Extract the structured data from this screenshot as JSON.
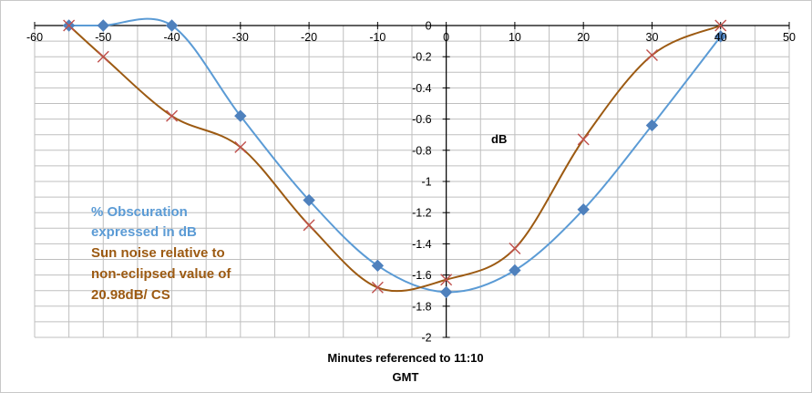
{
  "chart_data": {
    "type": "scatter",
    "xlabel_line1": "Minutes  referenced to 11:10",
    "xlabel_line2": "GMT",
    "ylabel": "dB",
    "xlim": [
      -60,
      50
    ],
    "ylim": [
      -2,
      0
    ],
    "x_ticks": [
      -60,
      -50,
      -40,
      -30,
      -20,
      -10,
      0,
      10,
      20,
      30,
      40,
      50
    ],
    "y_ticks": [
      0,
      -0.2,
      -0.4,
      -0.6,
      -0.8,
      -1,
      -1.2,
      -1.4,
      -1.6,
      -1.8,
      -2
    ],
    "x_minor_step": 5,
    "y_minor_step": 0.1,
    "grid": true,
    "legend_placement": "left, inside plot",
    "series": [
      {
        "legend_lines": [
          "% Obscuration",
          "expressed in dB"
        ],
        "color": "#5b9bd5",
        "marker": "diamond",
        "marker_color": "#4f81bd",
        "points": [
          {
            "x": -55,
            "y": 0
          },
          {
            "x": -50,
            "y": 0
          },
          {
            "x": -40,
            "y": 0
          },
          {
            "x": -30,
            "y": -0.58
          },
          {
            "x": -20,
            "y": -1.12
          },
          {
            "x": -10,
            "y": -1.54
          },
          {
            "x": 0,
            "y": -1.71
          },
          {
            "x": 10,
            "y": -1.57
          },
          {
            "x": 20,
            "y": -1.18
          },
          {
            "x": 30,
            "y": -0.64
          },
          {
            "x": 40,
            "y": -0.07
          }
        ]
      },
      {
        "legend_lines": [
          "Sun noise relative to",
          "non-eclipsed value of",
          "20.98dB/ CS"
        ],
        "color": "#9c5a12",
        "marker": "cross",
        "marker_color": "#c0504d",
        "points": [
          {
            "x": -55,
            "y": 0
          },
          {
            "x": -50,
            "y": -0.2
          },
          {
            "x": -40,
            "y": -0.58
          },
          {
            "x": -30,
            "y": -0.78
          },
          {
            "x": -20,
            "y": -1.28
          },
          {
            "x": -10,
            "y": -1.68
          },
          {
            "x": 0,
            "y": -1.63
          },
          {
            "x": 10,
            "y": -1.43
          },
          {
            "x": 20,
            "y": -0.73
          },
          {
            "x": 30,
            "y": -0.19
          },
          {
            "x": 40,
            "y": 0
          }
        ]
      }
    ]
  }
}
